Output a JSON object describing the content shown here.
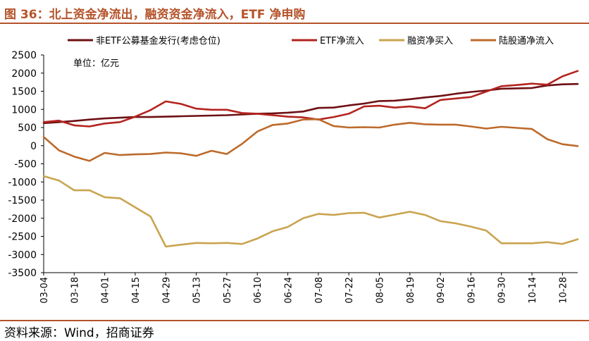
{
  "figure": {
    "title": "图 36：北上资金净流出，融资资金净流入，ETF 净申购",
    "source": "资料来源：Wind，招商证券"
  },
  "colors": {
    "accent": "#b5532a",
    "series": [
      "#6e1014",
      "#b3241f",
      "#c9a44f",
      "#bd6a2b"
    ]
  },
  "chart_data": {
    "type": "line",
    "unit_note": "单位：亿元",
    "ylim": [
      -3500,
      2500
    ],
    "yticks": [
      2500,
      2000,
      1500,
      1000,
      500,
      0,
      -500,
      -1000,
      -1500,
      -2000,
      -2500,
      -3000,
      -3500
    ],
    "x": [
      "03-04",
      "03-11",
      "03-18",
      "03-25",
      "04-01",
      "04-08",
      "04-15",
      "04-22",
      "04-29",
      "05-06",
      "05-13",
      "05-20",
      "05-27",
      "06-03",
      "06-10",
      "06-17",
      "06-24",
      "07-01",
      "07-08",
      "07-15",
      "07-22",
      "07-29",
      "08-05",
      "08-12",
      "08-19",
      "08-26",
      "09-02",
      "09-09",
      "09-16",
      "09-23",
      "09-30",
      "10-07",
      "10-14",
      "10-21",
      "10-28",
      "11-04"
    ],
    "tick_labels": [
      "03-04",
      "03-18",
      "04-01",
      "04-15",
      "04-29",
      "05-13",
      "05-27",
      "06-10",
      "06-24",
      "07-08",
      "07-22",
      "08-05",
      "08-19",
      "09-02",
      "09-16",
      "09-30",
      "10-14",
      "10-28"
    ],
    "legend": [
      "非ETF公募基金发行(考虑仓位)",
      "ETF净流入",
      "融资净买入",
      "陆股通净流入"
    ],
    "series": [
      {
        "name": "非ETF公募基金发行(考虑仓位)",
        "values": [
          620,
          650,
          680,
          720,
          750,
          770,
          790,
          790,
          800,
          810,
          820,
          830,
          840,
          860,
          880,
          890,
          910,
          940,
          1040,
          1050,
          1110,
          1160,
          1230,
          1240,
          1280,
          1330,
          1370,
          1430,
          1480,
          1520,
          1570,
          1580,
          1590,
          1660,
          1690,
          1700
        ]
      },
      {
        "name": "ETF净流入",
        "values": [
          650,
          690,
          560,
          530,
          610,
          650,
          800,
          980,
          1220,
          1150,
          1020,
          990,
          990,
          900,
          880,
          840,
          800,
          780,
          720,
          790,
          880,
          1080,
          1100,
          1050,
          1080,
          1030,
          1260,
          1300,
          1340,
          1490,
          1640,
          1670,
          1710,
          1680,
          1910,
          2060
        ]
      },
      {
        "name": "融资净买入",
        "values": [
          -840,
          -960,
          -1230,
          -1230,
          -1420,
          -1450,
          -1700,
          -1950,
          -2780,
          -2730,
          -2680,
          -2690,
          -2680,
          -2710,
          -2560,
          -2360,
          -2240,
          -2000,
          -1880,
          -1910,
          -1860,
          -1850,
          -1980,
          -1900,
          -1820,
          -1910,
          -2080,
          -2140,
          -2230,
          -2340,
          -2690,
          -2690,
          -2690,
          -2660,
          -2710,
          -2580
        ]
      },
      {
        "name": "陆股通净流入",
        "values": [
          240,
          -130,
          -300,
          -420,
          -200,
          -260,
          -240,
          -230,
          -190,
          -210,
          -280,
          -140,
          -230,
          50,
          390,
          570,
          610,
          720,
          730,
          540,
          500,
          510,
          500,
          580,
          630,
          590,
          580,
          580,
          530,
          470,
          520,
          490,
          460,
          180,
          40,
          -10
        ]
      }
    ]
  }
}
